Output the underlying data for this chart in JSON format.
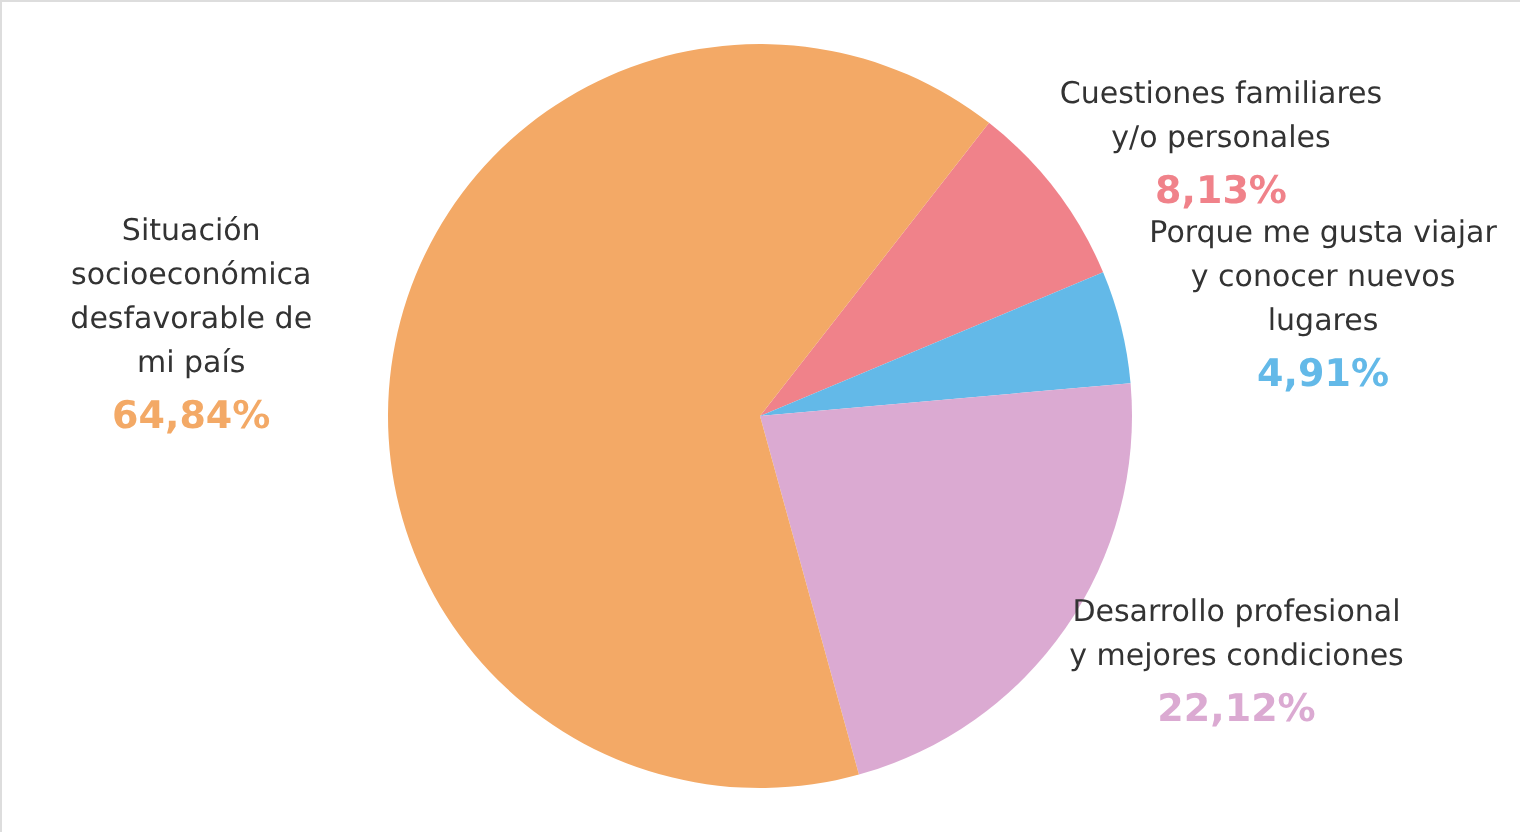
{
  "chart_data": {
    "type": "pie",
    "categories": [
      "Cuestiones familiares y/o personales",
      "Porque me gusta viajar y conocer nuevos lugares",
      "Desarrollo profesional y mejores condiciones",
      "Situación socioeconómica desfavorable de mi país"
    ],
    "values": [
      8.13,
      4.91,
      22.12,
      64.84
    ],
    "value_labels": [
      "8,13%",
      "4,91%",
      "22,12%",
      "64,84%"
    ],
    "colors": [
      "#f0828a",
      "#63b9e8",
      "#dbaad2",
      "#f3a966"
    ]
  }
}
